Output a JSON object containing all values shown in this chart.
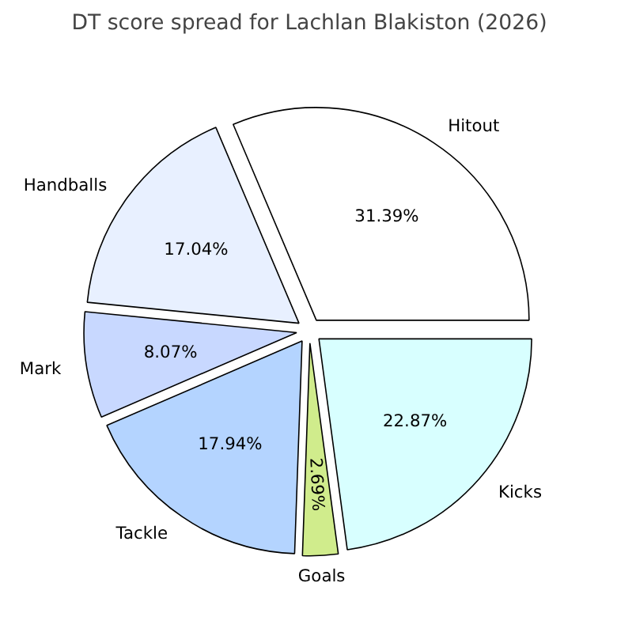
{
  "chart_data": {
    "type": "pie",
    "title": "DT score spread for Lachlan Blakiston (2026)",
    "categories": [
      "Hitout",
      "Handballs",
      "Mark",
      "Tackle",
      "Goals",
      "Kicks"
    ],
    "values": [
      31.39,
      17.04,
      8.07,
      17.94,
      2.69,
      22.87
    ],
    "colors": [
      "#ffffff",
      "#e8f0ff",
      "#c8d8ff",
      "#b4d4ff",
      "#d0ec8c",
      "#d8ffff"
    ],
    "value_labels": [
      "31.39%",
      "17.04%",
      "8.07%",
      "17.94%",
      "2.69%",
      "22.87%"
    ]
  }
}
